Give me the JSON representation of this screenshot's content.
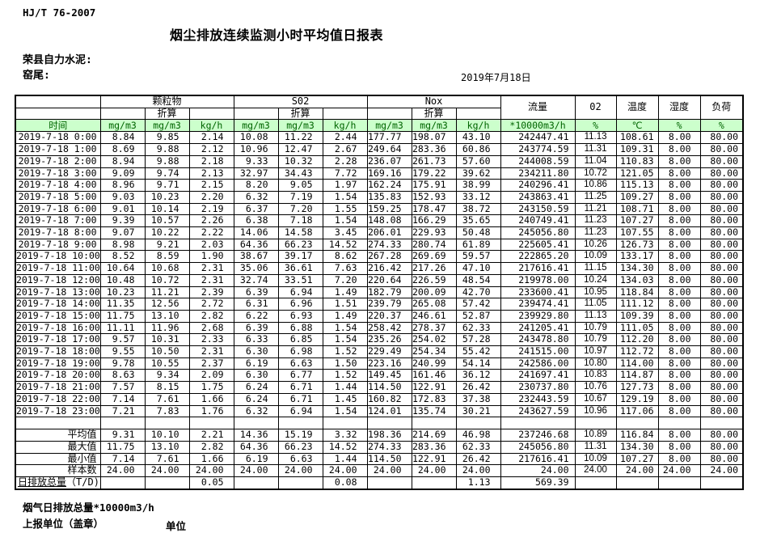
{
  "standard_code": "HJ/T  76-2007",
  "title": "烟尘排放连续监测小时平均值日报表",
  "company": "荣县自力水泥:",
  "site": "窑尾:",
  "date": "2019年7月18日",
  "colors": {
    "header_green_bg": "#ccffcc",
    "header_green_text": "#006400"
  },
  "table": {
    "time_header": "时间",
    "zhesuan": "折算",
    "groups": [
      {
        "label": "颗粒物"
      },
      {
        "label": "S02"
      },
      {
        "label": "Nox"
      }
    ],
    "single_headers": [
      "流量",
      "02",
      "温度",
      "湿度",
      "负荷"
    ],
    "units": [
      "mg/m3",
      "mg/m3",
      "kg/h",
      "mg/m3",
      "mg/m3",
      "kg/h",
      "mg/m3",
      "mg/m3",
      "kg/h",
      "*10000m3/h",
      "%",
      "℃",
      "%",
      "%"
    ],
    "rows": [
      {
        "time": "2019-7-18  0:00",
        "values": [
          "8.84",
          "9.85",
          "2.14",
          "10.08",
          "11.22",
          "2.44",
          "177.77",
          "198.07",
          "43.10",
          "242447.41",
          "11.13",
          "108.61",
          "8.00",
          "80.00"
        ]
      },
      {
        "time": "2019-7-18  1:00",
        "values": [
          "8.69",
          "9.88",
          "2.12",
          "10.96",
          "12.47",
          "2.67",
          "249.64",
          "283.36",
          "60.86",
          "243774.59",
          "11.31",
          "109.31",
          "8.00",
          "80.00"
        ]
      },
      {
        "time": "2019-7-18  2:00",
        "values": [
          "8.94",
          "9.88",
          "2.18",
          "9.33",
          "10.32",
          "2.28",
          "236.07",
          "261.73",
          "57.60",
          "244008.59",
          "11.04",
          "110.83",
          "8.00",
          "80.00"
        ]
      },
      {
        "time": "2019-7-18  3:00",
        "values": [
          "9.09",
          "9.74",
          "2.13",
          "32.97",
          "34.43",
          "7.72",
          "169.16",
          "179.22",
          "39.62",
          "234211.80",
          "10.72",
          "121.05",
          "8.00",
          "80.00"
        ]
      },
      {
        "time": "2019-7-18  4:00",
        "values": [
          "8.96",
          "9.71",
          "2.15",
          "8.20",
          "9.05",
          "1.97",
          "162.24",
          "175.91",
          "38.99",
          "240296.41",
          "10.86",
          "115.13",
          "8.00",
          "80.00"
        ]
      },
      {
        "time": "2019-7-18  5:00",
        "values": [
          "9.03",
          "10.23",
          "2.20",
          "6.32",
          "7.19",
          "1.54",
          "135.83",
          "152.93",
          "33.12",
          "243863.41",
          "11.25",
          "109.27",
          "8.00",
          "80.00"
        ]
      },
      {
        "time": "2019-7-18  6:00",
        "values": [
          "9.01",
          "10.14",
          "2.19",
          "6.37",
          "7.20",
          "1.55",
          "159.25",
          "178.47",
          "38.72",
          "243150.59",
          "11.21",
          "108.71",
          "8.00",
          "80.00"
        ]
      },
      {
        "time": "2019-7-18  7:00",
        "values": [
          "9.39",
          "10.57",
          "2.26",
          "6.38",
          "7.18",
          "1.54",
          "148.08",
          "166.29",
          "35.65",
          "240749.41",
          "11.23",
          "107.27",
          "8.00",
          "80.00"
        ]
      },
      {
        "time": "2019-7-18  8:00",
        "values": [
          "9.07",
          "10.22",
          "2.22",
          "14.06",
          "14.58",
          "3.45",
          "206.01",
          "229.93",
          "50.48",
          "245056.80",
          "11.23",
          "107.55",
          "8.00",
          "80.00"
        ]
      },
      {
        "time": "2019-7-18  9:00",
        "values": [
          "8.98",
          "9.21",
          "2.03",
          "64.36",
          "66.23",
          "14.52",
          "274.33",
          "280.74",
          "61.89",
          "225605.41",
          "10.26",
          "126.73",
          "8.00",
          "80.00"
        ]
      },
      {
        "time": "2019-7-18 10:00",
        "values": [
          "8.52",
          "8.59",
          "1.90",
          "38.67",
          "39.17",
          "8.62",
          "267.28",
          "269.69",
          "59.57",
          "222865.20",
          "10.09",
          "133.17",
          "8.00",
          "80.00"
        ]
      },
      {
        "time": "2019-7-18 11:00",
        "values": [
          "10.64",
          "10.68",
          "2.31",
          "35.06",
          "36.61",
          "7.63",
          "216.42",
          "217.26",
          "47.10",
          "217616.41",
          "11.15",
          "134.30",
          "8.00",
          "80.00"
        ]
      },
      {
        "time": "2019-7-18 12:00",
        "values": [
          "10.48",
          "10.72",
          "2.31",
          "32.74",
          "33.51",
          "7.20",
          "220.64",
          "226.59",
          "48.54",
          "219978.00",
          "10.24",
          "134.03",
          "8.00",
          "80.00"
        ]
      },
      {
        "time": "2019-7-18 13:00",
        "values": [
          "10.23",
          "11.21",
          "2.39",
          "6.39",
          "6.94",
          "1.49",
          "182.79",
          "200.09",
          "42.70",
          "233600.41",
          "10.95",
          "118.84",
          "8.00",
          "80.00"
        ]
      },
      {
        "time": "2019-7-18 14:00",
        "values": [
          "11.35",
          "12.56",
          "2.72",
          "6.31",
          "6.96",
          "1.51",
          "239.79",
          "265.08",
          "57.42",
          "239474.41",
          "11.05",
          "111.12",
          "8.00",
          "80.00"
        ]
      },
      {
        "time": "2019-7-18 15:00",
        "values": [
          "11.75",
          "13.10",
          "2.82",
          "6.22",
          "6.93",
          "1.49",
          "220.37",
          "246.61",
          "52.87",
          "239929.80",
          "11.13",
          "109.39",
          "8.00",
          "80.00"
        ]
      },
      {
        "time": "2019-7-18 16:00",
        "values": [
          "11.11",
          "11.96",
          "2.68",
          "6.39",
          "6.88",
          "1.54",
          "258.42",
          "278.37",
          "62.33",
          "241205.41",
          "10.79",
          "111.05",
          "8.00",
          "80.00"
        ]
      },
      {
        "time": "2019-7-18 17:00",
        "values": [
          "9.57",
          "10.31",
          "2.33",
          "6.33",
          "6.85",
          "1.54",
          "235.26",
          "254.02",
          "57.28",
          "243478.80",
          "10.79",
          "112.20",
          "8.00",
          "80.00"
        ]
      },
      {
        "time": "2019-7-18 18:00",
        "values": [
          "9.55",
          "10.50",
          "2.31",
          "6.30",
          "6.98",
          "1.52",
          "229.49",
          "254.34",
          "55.42",
          "241515.00",
          "10.97",
          "112.72",
          "8.00",
          "80.00"
        ]
      },
      {
        "time": "2019-7-18 19:00",
        "values": [
          "9.78",
          "10.55",
          "2.37",
          "6.19",
          "6.63",
          "1.50",
          "223.16",
          "240.99",
          "54.14",
          "242586.00",
          "10.80",
          "114.00",
          "8.00",
          "80.00"
        ]
      },
      {
        "time": "2019-7-18 20:00",
        "values": [
          "8.63",
          "9.34",
          "2.09",
          "6.30",
          "6.77",
          "1.52",
          "149.45",
          "161.46",
          "36.12",
          "241697.41",
          "10.83",
          "114.87",
          "8.00",
          "80.00"
        ]
      },
      {
        "time": "2019-7-18 21:00",
        "values": [
          "7.57",
          "8.15",
          "1.75",
          "6.24",
          "6.71",
          "1.44",
          "114.50",
          "122.91",
          "26.42",
          "230737.80",
          "10.76",
          "127.73",
          "8.00",
          "80.00"
        ]
      },
      {
        "time": "2019-7-18 22:00",
        "values": [
          "7.14",
          "7.61",
          "1.66",
          "6.24",
          "6.71",
          "1.45",
          "160.82",
          "172.83",
          "37.38",
          "232443.59",
          "10.67",
          "129.19",
          "8.00",
          "80.00"
        ]
      },
      {
        "time": "2019-7-18 23:00",
        "values": [
          "7.21",
          "7.83",
          "1.76",
          "6.32",
          "6.94",
          "1.54",
          "124.01",
          "135.74",
          "30.21",
          "243627.59",
          "10.96",
          "117.06",
          "8.00",
          "80.00"
        ]
      }
    ],
    "summary": [
      {
        "label": "平均值",
        "values": [
          "9.31",
          "10.10",
          "2.21",
          "14.36",
          "15.19",
          "3.32",
          "198.36",
          "214.69",
          "46.98",
          "237246.68",
          "10.89",
          "116.84",
          "8.00",
          "80.00"
        ]
      },
      {
        "label": "最大值",
        "values": [
          "11.75",
          "13.10",
          "2.82",
          "64.36",
          "66.23",
          "14.52",
          "274.33",
          "283.36",
          "62.33",
          "245056.80",
          "11.31",
          "134.30",
          "8.00",
          "80.00"
        ]
      },
      {
        "label": "最小值",
        "values": [
          "7.14",
          "7.61",
          "1.66",
          "6.19",
          "6.63",
          "1.44",
          "114.50",
          "122.91",
          "26.42",
          "217616.41",
          "10.09",
          "107.27",
          "8.00",
          "80.00"
        ]
      },
      {
        "label": "样本数",
        "values": [
          "24.00",
          "24.00",
          "24.00",
          "24.00",
          "24.00",
          "24.00",
          "24.00",
          "24.00",
          "24.00",
          "24.00",
          "24.00",
          "24.00",
          "24.00",
          "24.00"
        ]
      },
      {
        "label": "日排放总量",
        "label_suffix": "（T/D)",
        "underline_label": true,
        "values": [
          "",
          "",
          "0.05",
          "",
          "",
          "0.08",
          "",
          "",
          "1.13",
          "569.39",
          "",
          "",
          "",
          ""
        ]
      }
    ]
  },
  "footer": {
    "flue_total": "烟气日排放总量*10000m3/h",
    "report_unit": "上报单位（盖章）",
    "unit": "单位"
  }
}
